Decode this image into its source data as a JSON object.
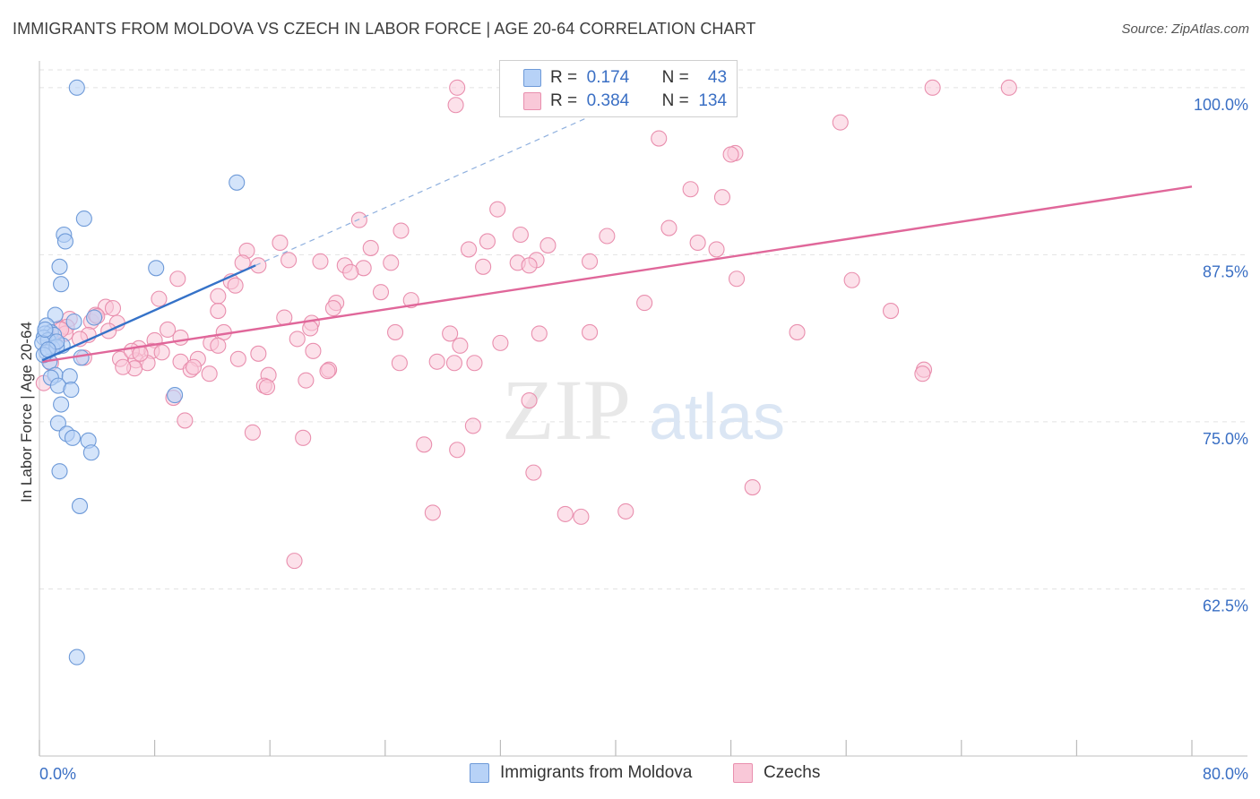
{
  "title": "IMMIGRANTS FROM MOLDOVA VS CZECH IN LABOR FORCE | AGE 20-64 CORRELATION CHART",
  "source": "Source: ZipAtlas.com",
  "watermark": {
    "zip": "ZIP",
    "atlas": "atlas"
  },
  "stats": {
    "moldova": {
      "r_label": "R =",
      "r_value": "0.174",
      "n_label": "N =",
      "n_value": "43"
    },
    "czechs": {
      "r_label": "R =",
      "r_value": "0.384",
      "n_label": "N =",
      "n_value": "134"
    }
  },
  "colors": {
    "moldova_fill": "#b7d2f7",
    "moldova_stroke": "#6e9ad8",
    "moldova_line": "#3572c8",
    "czechs_fill": "#f9c8d8",
    "czechs_stroke": "#e98fae",
    "czechs_line": "#e0679a",
    "tick_label": "#3a6fc4",
    "grid": "#e2e2e2"
  },
  "chart_data": {
    "type": "scatter",
    "title": "IMMIGRANTS FROM MOLDOVA VS CZECH IN LABOR FORCE | AGE 20-64 CORRELATION CHART",
    "xlabel": "",
    "ylabel": "In Labor Force | Age 20-64",
    "xlim": [
      0,
      80
    ],
    "ylim": [
      50,
      102
    ],
    "x_tick_labels": [
      "0.0%",
      "80.0%"
    ],
    "y_ticks": [
      62.5,
      75.0,
      87.5,
      100.0
    ],
    "y_tick_labels": [
      "62.5%",
      "75.0%",
      "87.5%",
      "100.0%"
    ],
    "grid": true,
    "legend_position": "bottom-center",
    "series": [
      {
        "name": "Immigrants from Moldova",
        "trend": {
          "x0": 0.2,
          "y0": 79.6,
          "x1": 15.0,
          "y1": 86.7,
          "dashed_to_x": 40.0,
          "dashed_to_y": 98.7
        },
        "points": [
          [
            2.6,
            100.0
          ],
          [
            13.7,
            92.9
          ],
          [
            3.1,
            90.2
          ],
          [
            1.7,
            89.0
          ],
          [
            1.8,
            88.5
          ],
          [
            1.4,
            86.6
          ],
          [
            8.1,
            86.5
          ],
          [
            1.5,
            85.3
          ],
          [
            1.1,
            83.0
          ],
          [
            0.5,
            82.2
          ],
          [
            2.4,
            82.5
          ],
          [
            3.8,
            82.8
          ],
          [
            0.8,
            81.7
          ],
          [
            0.4,
            81.6
          ],
          [
            1.0,
            81.5
          ],
          [
            0.3,
            81.3
          ],
          [
            0.6,
            81.1
          ],
          [
            0.2,
            80.9
          ],
          [
            1.6,
            80.7
          ],
          [
            0.9,
            80.5
          ],
          [
            0.5,
            80.2
          ],
          [
            1.2,
            80.6
          ],
          [
            2.9,
            79.8
          ],
          [
            0.7,
            79.5
          ],
          [
            0.3,
            80.0
          ],
          [
            1.1,
            78.5
          ],
          [
            2.1,
            78.4
          ],
          [
            0.8,
            78.3
          ],
          [
            1.3,
            77.7
          ],
          [
            2.2,
            77.4
          ],
          [
            9.4,
            77.0
          ],
          [
            1.5,
            76.3
          ],
          [
            1.3,
            74.9
          ],
          [
            1.9,
            74.1
          ],
          [
            2.3,
            73.8
          ],
          [
            3.4,
            73.6
          ],
          [
            3.6,
            72.7
          ],
          [
            1.4,
            71.3
          ],
          [
            2.8,
            68.7
          ],
          [
            2.6,
            57.4
          ],
          [
            0.4,
            81.9
          ],
          [
            1.2,
            81.0
          ],
          [
            0.6,
            80.4
          ]
        ]
      },
      {
        "name": "Czechs",
        "trend": {
          "x0": 0.2,
          "y0": 79.5,
          "x1": 80.0,
          "y1": 92.6
        },
        "points": [
          [
            29.0,
            100.0
          ],
          [
            41.5,
            100.0
          ],
          [
            62.0,
            100.0
          ],
          [
            67.3,
            100.0
          ],
          [
            28.9,
            98.7
          ],
          [
            55.6,
            97.4
          ],
          [
            43.0,
            96.2
          ],
          [
            48.3,
            95.1
          ],
          [
            48.0,
            95.0
          ],
          [
            45.2,
            92.4
          ],
          [
            47.4,
            91.8
          ],
          [
            31.8,
            90.9
          ],
          [
            22.2,
            90.1
          ],
          [
            43.7,
            89.5
          ],
          [
            25.1,
            89.3
          ],
          [
            33.4,
            89.0
          ],
          [
            39.4,
            88.9
          ],
          [
            16.7,
            88.4
          ],
          [
            31.1,
            88.5
          ],
          [
            23.0,
            88.0
          ],
          [
            29.8,
            87.9
          ],
          [
            35.3,
            88.2
          ],
          [
            45.7,
            88.4
          ],
          [
            47.0,
            87.9
          ],
          [
            14.4,
            87.8
          ],
          [
            17.3,
            87.1
          ],
          [
            19.5,
            87.0
          ],
          [
            24.4,
            86.9
          ],
          [
            14.1,
            86.9
          ],
          [
            21.2,
            86.7
          ],
          [
            33.2,
            86.9
          ],
          [
            34.5,
            87.1
          ],
          [
            38.2,
            87.0
          ],
          [
            30.8,
            86.6
          ],
          [
            22.5,
            86.5
          ],
          [
            34.0,
            86.7
          ],
          [
            15.2,
            86.7
          ],
          [
            21.6,
            86.2
          ],
          [
            56.4,
            85.6
          ],
          [
            48.4,
            85.7
          ],
          [
            9.6,
            85.7
          ],
          [
            13.3,
            85.5
          ],
          [
            13.6,
            85.2
          ],
          [
            12.4,
            84.4
          ],
          [
            23.7,
            84.7
          ],
          [
            8.3,
            84.2
          ],
          [
            25.8,
            84.1
          ],
          [
            42.0,
            83.9
          ],
          [
            20.6,
            83.9
          ],
          [
            20.4,
            83.5
          ],
          [
            12.4,
            83.3
          ],
          [
            59.1,
            83.3
          ],
          [
            4.6,
            83.6
          ],
          [
            5.1,
            83.5
          ],
          [
            2.1,
            82.7
          ],
          [
            3.6,
            82.5
          ],
          [
            17.0,
            82.8
          ],
          [
            18.9,
            82.4
          ],
          [
            5.4,
            82.4
          ],
          [
            3.9,
            83.0
          ],
          [
            1.4,
            82.0
          ],
          [
            1.9,
            82.1
          ],
          [
            8.9,
            81.9
          ],
          [
            12.8,
            81.7
          ],
          [
            18.8,
            82.0
          ],
          [
            24.7,
            81.7
          ],
          [
            34.7,
            81.6
          ],
          [
            38.2,
            81.7
          ],
          [
            52.6,
            81.7
          ],
          [
            28.5,
            81.6
          ],
          [
            4.8,
            81.8
          ],
          [
            3.4,
            81.5
          ],
          [
            9.8,
            81.3
          ],
          [
            1.8,
            81.6
          ],
          [
            17.9,
            81.2
          ],
          [
            8.0,
            81.1
          ],
          [
            11.9,
            80.9
          ],
          [
            6.9,
            80.5
          ],
          [
            12.4,
            80.7
          ],
          [
            7.8,
            80.3
          ],
          [
            8.5,
            80.2
          ],
          [
            19.0,
            80.3
          ],
          [
            29.2,
            80.7
          ],
          [
            32.0,
            80.9
          ],
          [
            15.2,
            80.1
          ],
          [
            13.8,
            79.7
          ],
          [
            5.6,
            79.7
          ],
          [
            6.7,
            79.6
          ],
          [
            0.8,
            79.4
          ],
          [
            3.1,
            79.8
          ],
          [
            11.0,
            79.7
          ],
          [
            25.0,
            79.4
          ],
          [
            27.6,
            79.5
          ],
          [
            30.2,
            79.4
          ],
          [
            28.8,
            79.4
          ],
          [
            9.8,
            79.5
          ],
          [
            7.5,
            79.4
          ],
          [
            6.6,
            79.0
          ],
          [
            10.5,
            78.9
          ],
          [
            10.7,
            79.1
          ],
          [
            11.8,
            78.6
          ],
          [
            20.1,
            78.9
          ],
          [
            15.9,
            78.5
          ],
          [
            61.4,
            78.9
          ],
          [
            61.3,
            78.6
          ],
          [
            18.5,
            78.1
          ],
          [
            15.6,
            77.7
          ],
          [
            15.8,
            77.6
          ],
          [
            9.3,
            76.8
          ],
          [
            34.0,
            76.6
          ],
          [
            10.1,
            75.1
          ],
          [
            30.1,
            74.7
          ],
          [
            14.8,
            74.2
          ],
          [
            18.3,
            73.8
          ],
          [
            26.7,
            73.3
          ],
          [
            29.0,
            72.9
          ],
          [
            34.3,
            71.2
          ],
          [
            49.5,
            70.1
          ],
          [
            27.3,
            68.2
          ],
          [
            36.5,
            68.1
          ],
          [
            37.6,
            67.9
          ],
          [
            40.7,
            68.3
          ],
          [
            17.7,
            64.6
          ],
          [
            0.3,
            77.9
          ],
          [
            6.4,
            80.3
          ],
          [
            2.8,
            81.2
          ],
          [
            4.0,
            82.9
          ],
          [
            20.0,
            78.8
          ],
          [
            7.0,
            80.1
          ],
          [
            5.8,
            79.1
          ],
          [
            1.0,
            80.8
          ],
          [
            1.5,
            81.9
          ]
        ]
      }
    ]
  },
  "legend": {
    "moldova": "Immigrants from Moldova",
    "czechs": "Czechs"
  }
}
